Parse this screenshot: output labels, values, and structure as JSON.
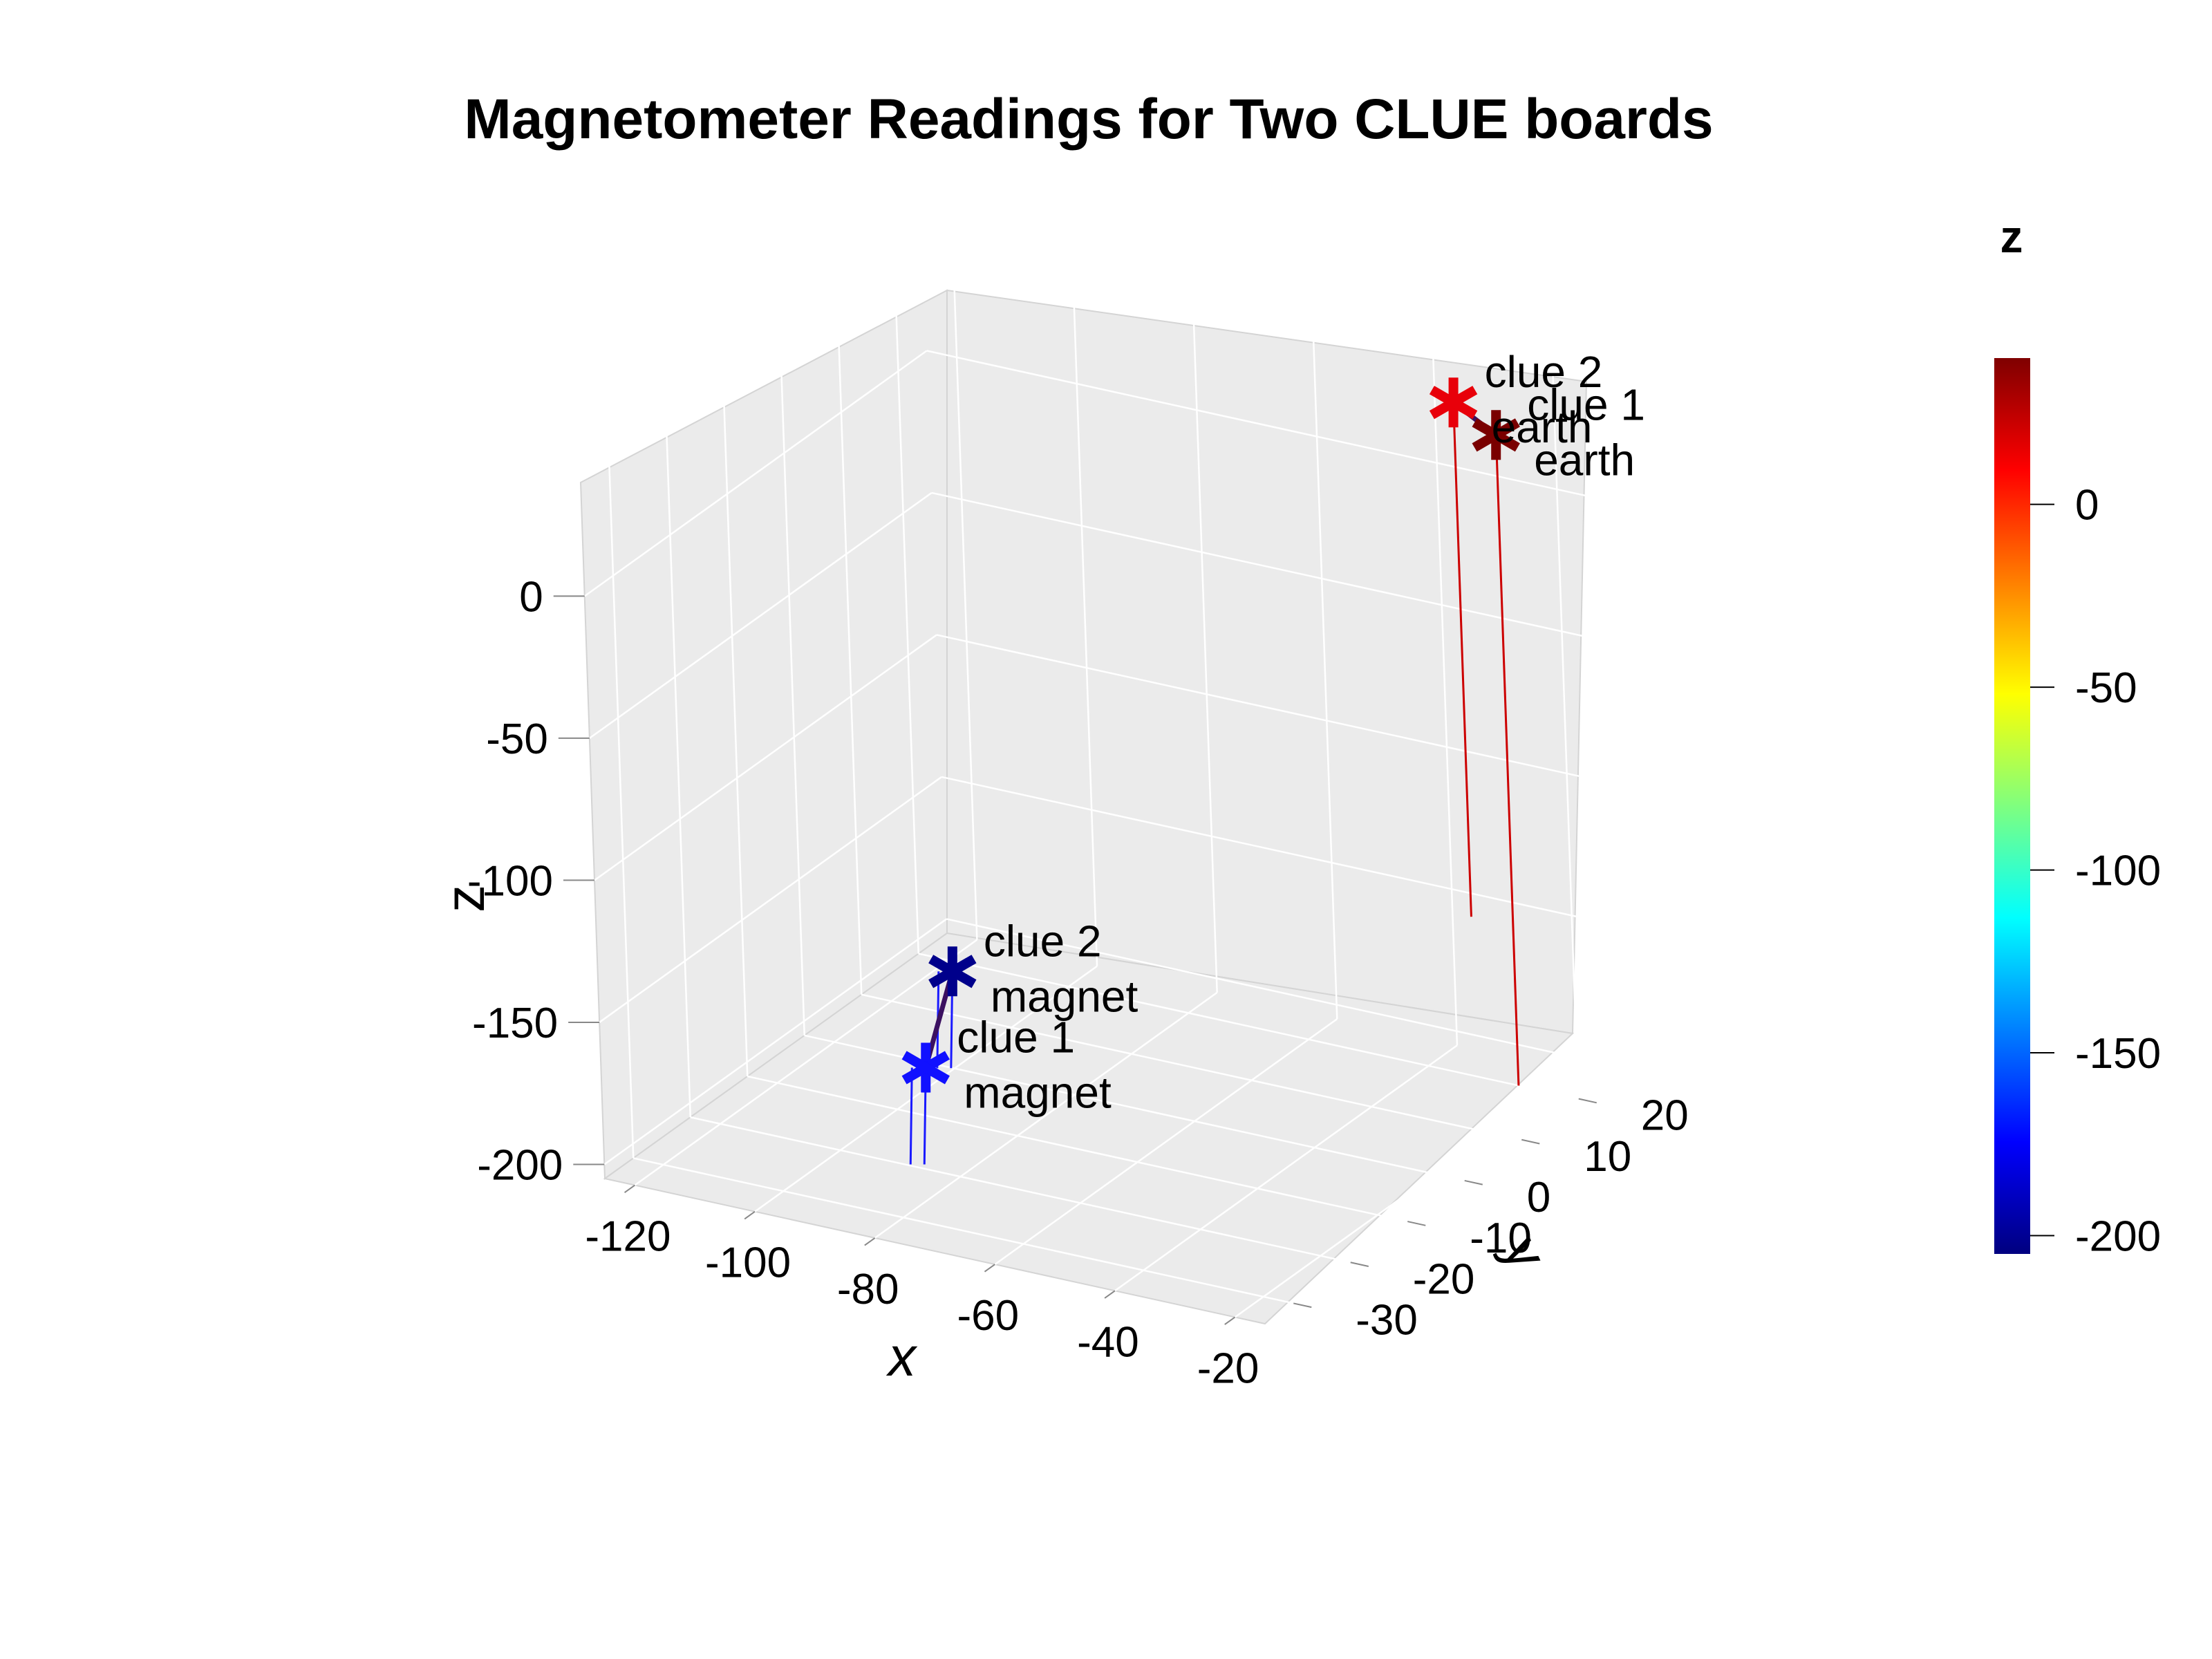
{
  "chart_data": {
    "type": "scatter",
    "title": "Magnetometer Readings for Two CLUE boards",
    "xlabel": "x",
    "ylabel": "y",
    "zlabel": "z",
    "xlim": [
      -125,
      -15
    ],
    "ylim": [
      -35,
      25
    ],
    "zlim": [
      -205,
      40
    ],
    "x_ticks": [
      "-120",
      "-100",
      "-80",
      "-60",
      "-40",
      "-20"
    ],
    "y_ticks": [
      "-30",
      "-20",
      "-10",
      "0",
      "10",
      "20"
    ],
    "z_ticks": [
      "0",
      "-50",
      "-100",
      "-150",
      "-200"
    ],
    "points": [
      {
        "line1": "clue 1",
        "line2": "magnet",
        "x": -95,
        "y": -10,
        "z": -188,
        "color": "#1111ff"
      },
      {
        "line1": "clue 2",
        "line2": "magnet",
        "x": -88,
        "y": -12,
        "z": -148,
        "color": "#00008b"
      },
      {
        "line1": "clue 1",
        "line2": "earth",
        "x": -25,
        "y": 20,
        "z": 24,
        "color": "#7a0000"
      },
      {
        "line1": "clue 2",
        "line2": "earth",
        "x": -30,
        "y": 18,
        "z": 36,
        "color": "#e8000a"
      }
    ],
    "connecting_lines": [
      [
        0,
        1
      ],
      [
        2,
        3
      ]
    ],
    "grid": true,
    "colorbar": {
      "title": "z",
      "ticks": [
        "0",
        "-50",
        "-100",
        "-150",
        "-200"
      ],
      "range": [
        -205,
        40
      ],
      "colors": [
        "#00007f",
        "#0000ff",
        "#007fff",
        "#00ffff",
        "#7fff7f",
        "#ffff00",
        "#ff7f00",
        "#ff0000",
        "#7f0000"
      ]
    }
  }
}
